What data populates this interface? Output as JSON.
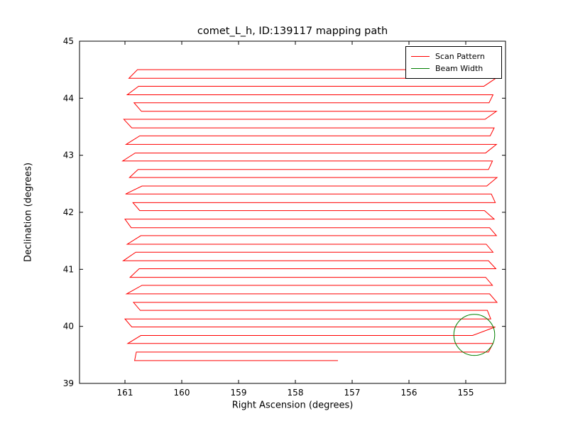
{
  "chart_data": {
    "type": "line",
    "title": "comet_L_h, ID:139117 mapping path",
    "xlabel": "Right Ascension (degrees)",
    "ylabel": "Declination (degrees)",
    "x_axis_inverted": true,
    "xlim": [
      161.8,
      154.3
    ],
    "ylim": [
      39,
      45
    ],
    "x_ticks": [
      161,
      160,
      159,
      158,
      157,
      156,
      155
    ],
    "y_ticks": [
      39,
      40,
      41,
      42,
      43,
      44,
      45
    ],
    "grid": false,
    "legend": {
      "position": "upper right",
      "entries": [
        {
          "label": "Scan Pattern",
          "color": "#ff0000"
        },
        {
          "label": "Beam Width",
          "color": "#007f00"
        }
      ]
    },
    "series": [
      {
        "name": "Scan Pattern",
        "color": "#ff0000",
        "pattern": "serpentine-raster",
        "scan_rows_format": [
          "dec_deg",
          "ra_left_deg",
          "ra_right_deg"
        ],
        "scan_rows": [
          [
            44.5,
            160.78,
            154.62
          ],
          [
            44.35,
            160.93,
            154.47
          ],
          [
            44.21,
            160.76,
            154.68
          ],
          [
            44.06,
            160.96,
            154.52
          ],
          [
            43.92,
            160.84,
            154.59
          ],
          [
            43.77,
            160.71,
            154.46
          ],
          [
            43.63,
            161.02,
            154.66
          ],
          [
            43.48,
            160.88,
            154.5
          ],
          [
            43.34,
            160.74,
            154.57
          ],
          [
            43.19,
            160.98,
            154.46
          ],
          [
            43.04,
            160.82,
            154.65
          ],
          [
            42.9,
            161.04,
            154.53
          ],
          [
            42.75,
            160.77,
            154.6
          ],
          [
            42.61,
            160.92,
            154.45
          ],
          [
            42.46,
            160.7,
            154.63
          ],
          [
            42.32,
            160.99,
            154.55
          ],
          [
            42.17,
            160.86,
            154.48
          ],
          [
            42.03,
            160.74,
            154.67
          ],
          [
            41.88,
            161.0,
            154.5
          ],
          [
            41.73,
            160.89,
            154.58
          ],
          [
            41.59,
            160.72,
            154.46
          ],
          [
            41.44,
            160.96,
            154.64
          ],
          [
            41.3,
            160.81,
            154.52
          ],
          [
            41.15,
            161.03,
            154.6
          ],
          [
            41.01,
            160.75,
            154.47
          ],
          [
            40.86,
            160.91,
            154.65
          ],
          [
            40.72,
            160.7,
            154.53
          ],
          [
            40.57,
            160.97,
            154.58
          ],
          [
            40.42,
            160.85,
            154.45
          ],
          [
            40.28,
            160.73,
            154.62
          ],
          [
            40.13,
            161.0,
            154.56
          ],
          [
            39.99,
            160.88,
            154.48
          ],
          [
            39.84,
            160.72,
            154.88
          ],
          [
            39.7,
            160.95,
            154.52
          ],
          [
            39.55,
            160.8,
            154.6
          ],
          [
            39.4,
            160.83,
            157.25
          ]
        ]
      },
      {
        "name": "Beam Width",
        "color": "#007f00",
        "shape": "circle",
        "center_ra": 154.85,
        "center_dec": 39.85,
        "radius_deg": 0.36
      }
    ]
  }
}
